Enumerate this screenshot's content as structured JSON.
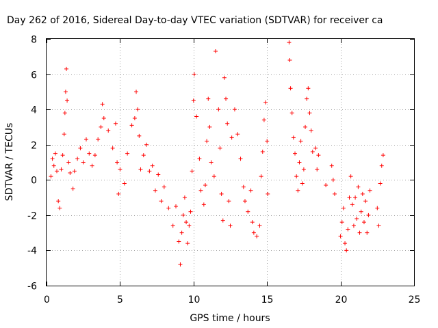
{
  "chart_data": {
    "type": "scatter",
    "title": "Day 262 of 2016, Sidereal Day-to-day VTEC variation (SDTVAR) for receiver ca",
    "xlabel": "GPS time / hours",
    "ylabel": "SDTVAR / TECUs",
    "xlim": [
      0,
      25
    ],
    "ylim": [
      -6,
      8
    ],
    "x_ticks": [
      "0",
      "5",
      "10",
      "15",
      "20",
      "25"
    ],
    "y_ticks": [
      "8",
      "6",
      "4",
      "2",
      "0",
      "-2",
      "-4",
      "-6"
    ],
    "x_tick_values": [
      0,
      5,
      10,
      15,
      20,
      25
    ],
    "y_tick_values": [
      8,
      6,
      4,
      2,
      0,
      -2,
      -4,
      -6
    ],
    "grid": true,
    "marker": "+",
    "color": "#ff0000",
    "series": [
      {
        "name": "SDTVAR",
        "points": [
          [
            0.3,
            0.2
          ],
          [
            0.4,
            1.2
          ],
          [
            0.5,
            0.8
          ],
          [
            0.6,
            1.5
          ],
          [
            0.7,
            0.5
          ],
          [
            0.8,
            -1.2
          ],
          [
            0.9,
            -1.6
          ],
          [
            1.0,
            0.6
          ],
          [
            1.1,
            1.4
          ],
          [
            1.2,
            2.6
          ],
          [
            1.25,
            3.8
          ],
          [
            1.3,
            5.0
          ],
          [
            1.35,
            6.3
          ],
          [
            1.4,
            4.5
          ],
          [
            1.5,
            1.0
          ],
          [
            1.6,
            0.4
          ],
          [
            1.8,
            -0.5
          ],
          [
            1.9,
            0.5
          ],
          [
            2.1,
            1.2
          ],
          [
            2.3,
            1.8
          ],
          [
            2.5,
            1.0
          ],
          [
            2.7,
            2.3
          ],
          [
            2.9,
            1.5
          ],
          [
            3.1,
            0.8
          ],
          [
            3.3,
            1.4
          ],
          [
            3.5,
            2.3
          ],
          [
            3.7,
            3.0
          ],
          [
            3.8,
            4.3
          ],
          [
            3.9,
            3.5
          ],
          [
            4.2,
            2.8
          ],
          [
            4.5,
            1.8
          ],
          [
            4.7,
            3.2
          ],
          [
            4.8,
            1.0
          ],
          [
            4.9,
            -0.8
          ],
          [
            5.0,
            0.6
          ],
          [
            5.3,
            -0.2
          ],
          [
            5.5,
            1.5
          ],
          [
            5.8,
            3.1
          ],
          [
            6.0,
            3.5
          ],
          [
            6.1,
            5.0
          ],
          [
            6.2,
            4.0
          ],
          [
            6.3,
            2.5
          ],
          [
            6.4,
            0.6
          ],
          [
            6.6,
            1.4
          ],
          [
            6.8,
            2.0
          ],
          [
            7.0,
            0.5
          ],
          [
            7.2,
            0.8
          ],
          [
            7.4,
            -0.6
          ],
          [
            7.6,
            0.3
          ],
          [
            7.8,
            -1.2
          ],
          [
            8.0,
            -0.4
          ],
          [
            8.3,
            -1.6
          ],
          [
            8.6,
            -2.6
          ],
          [
            8.8,
            -1.5
          ],
          [
            9.0,
            -3.5
          ],
          [
            9.1,
            -4.8
          ],
          [
            9.2,
            -3.0
          ],
          [
            9.3,
            -2.0
          ],
          [
            9.4,
            -1.0
          ],
          [
            9.5,
            -2.4
          ],
          [
            9.6,
            -3.6
          ],
          [
            9.7,
            -2.6
          ],
          [
            9.8,
            -1.8
          ],
          [
            9.9,
            0.5
          ],
          [
            10.0,
            4.5
          ],
          [
            10.05,
            6.0
          ],
          [
            10.2,
            3.6
          ],
          [
            10.4,
            1.2
          ],
          [
            10.5,
            -0.6
          ],
          [
            10.7,
            -1.4
          ],
          [
            10.8,
            -0.3
          ],
          [
            10.9,
            2.2
          ],
          [
            11.0,
            4.6
          ],
          [
            11.1,
            3.0
          ],
          [
            11.2,
            1.0
          ],
          [
            11.4,
            0.2
          ],
          [
            11.5,
            7.3
          ],
          [
            11.7,
            4.0
          ],
          [
            11.8,
            1.8
          ],
          [
            11.9,
            -0.8
          ],
          [
            12.0,
            -2.3
          ],
          [
            12.1,
            5.8
          ],
          [
            12.2,
            4.6
          ],
          [
            12.3,
            3.2
          ],
          [
            12.4,
            -1.2
          ],
          [
            12.5,
            -2.6
          ],
          [
            12.6,
            2.4
          ],
          [
            12.8,
            4.0
          ],
          [
            13.0,
            2.6
          ],
          [
            13.2,
            1.2
          ],
          [
            13.4,
            -0.4
          ],
          [
            13.5,
            -1.2
          ],
          [
            13.7,
            -1.8
          ],
          [
            13.9,
            -0.6
          ],
          [
            14.0,
            -2.4
          ],
          [
            14.1,
            -3.0
          ],
          [
            14.3,
            -3.2
          ],
          [
            14.5,
            -2.6
          ],
          [
            14.6,
            0.2
          ],
          [
            14.7,
            1.6
          ],
          [
            14.8,
            3.4
          ],
          [
            14.9,
            4.4
          ],
          [
            15.0,
            2.2
          ],
          [
            15.05,
            -0.8
          ],
          [
            16.5,
            7.8
          ],
          [
            16.55,
            6.8
          ],
          [
            16.6,
            5.2
          ],
          [
            16.7,
            3.8
          ],
          [
            16.8,
            2.4
          ],
          [
            16.9,
            1.5
          ],
          [
            17.0,
            0.2
          ],
          [
            17.1,
            -0.6
          ],
          [
            17.2,
            1.0
          ],
          [
            17.3,
            2.2
          ],
          [
            17.4,
            -0.2
          ],
          [
            17.5,
            0.6
          ],
          [
            17.6,
            3.0
          ],
          [
            17.7,
            4.6
          ],
          [
            17.8,
            5.2
          ],
          [
            17.9,
            3.8
          ],
          [
            18.0,
            2.8
          ],
          [
            18.1,
            1.6
          ],
          [
            18.3,
            1.8
          ],
          [
            18.4,
            0.6
          ],
          [
            18.5,
            1.4
          ],
          [
            19.0,
            -0.3
          ],
          [
            19.4,
            0.8
          ],
          [
            19.5,
            0.0
          ],
          [
            19.6,
            -0.8
          ],
          [
            20.0,
            -3.2
          ],
          [
            20.1,
            -2.4
          ],
          [
            20.2,
            -1.6
          ],
          [
            20.3,
            -3.6
          ],
          [
            20.4,
            -4.0
          ],
          [
            20.5,
            -2.8
          ],
          [
            20.6,
            -1.0
          ],
          [
            20.7,
            0.2
          ],
          [
            20.8,
            -1.4
          ],
          [
            20.9,
            -2.6
          ],
          [
            21.0,
            -1.0
          ],
          [
            21.1,
            -2.2
          ],
          [
            21.2,
            -0.4
          ],
          [
            21.3,
            -3.0
          ],
          [
            21.4,
            -1.8
          ],
          [
            21.5,
            -0.8
          ],
          [
            21.6,
            -2.4
          ],
          [
            21.7,
            -1.2
          ],
          [
            21.8,
            -3.0
          ],
          [
            21.9,
            -2.0
          ],
          [
            22.0,
            -0.6
          ],
          [
            22.5,
            -1.6
          ],
          [
            22.6,
            -2.6
          ],
          [
            22.7,
            -0.2
          ],
          [
            22.8,
            0.8
          ],
          [
            22.9,
            1.4
          ]
        ]
      }
    ]
  }
}
